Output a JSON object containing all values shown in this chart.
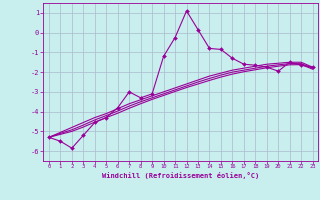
{
  "xlabel": "Windchill (Refroidissement éolien,°C)",
  "bg_color": "#c8eeee",
  "line_color": "#990099",
  "grid_color": "#aabbcc",
  "x_data": [
    0,
    1,
    2,
    3,
    4,
    5,
    6,
    7,
    8,
    9,
    10,
    11,
    12,
    13,
    14,
    15,
    16,
    17,
    18,
    19,
    20,
    21,
    22,
    23
  ],
  "y_main": [
    -5.3,
    -5.5,
    -5.85,
    -5.2,
    -4.55,
    -4.3,
    -3.8,
    -3.0,
    -3.3,
    -3.1,
    -1.2,
    -0.25,
    1.1,
    0.15,
    -0.8,
    -0.85,
    -1.3,
    -1.6,
    -1.65,
    -1.75,
    -1.95,
    -1.5,
    -1.65,
    -1.75
  ],
  "y_line1": [
    -5.3,
    -5.05,
    -4.8,
    -4.55,
    -4.3,
    -4.1,
    -3.85,
    -3.6,
    -3.4,
    -3.2,
    -3.0,
    -2.8,
    -2.6,
    -2.4,
    -2.2,
    -2.05,
    -1.9,
    -1.8,
    -1.7,
    -1.6,
    -1.55,
    -1.5,
    -1.5,
    -1.75
  ],
  "y_line2": [
    -5.3,
    -5.1,
    -4.92,
    -4.68,
    -4.42,
    -4.2,
    -3.97,
    -3.72,
    -3.5,
    -3.3,
    -3.1,
    -2.9,
    -2.7,
    -2.5,
    -2.32,
    -2.15,
    -2.0,
    -1.9,
    -1.8,
    -1.7,
    -1.63,
    -1.57,
    -1.57,
    -1.8
  ],
  "y_line3": [
    -5.3,
    -5.15,
    -5.0,
    -4.78,
    -4.53,
    -4.3,
    -4.08,
    -3.83,
    -3.6,
    -3.38,
    -3.18,
    -2.98,
    -2.78,
    -2.6,
    -2.42,
    -2.25,
    -2.1,
    -1.98,
    -1.88,
    -1.78,
    -1.7,
    -1.63,
    -1.62,
    -1.85
  ],
  "ylim": [
    -6.5,
    1.5
  ],
  "xlim": [
    -0.5,
    23.5
  ],
  "yticks": [
    1,
    0,
    -1,
    -2,
    -3,
    -4,
    -5,
    -6
  ],
  "xticks": [
    0,
    1,
    2,
    3,
    4,
    5,
    6,
    7,
    8,
    9,
    10,
    11,
    12,
    13,
    14,
    15,
    16,
    17,
    18,
    19,
    20,
    21,
    22,
    23
  ]
}
